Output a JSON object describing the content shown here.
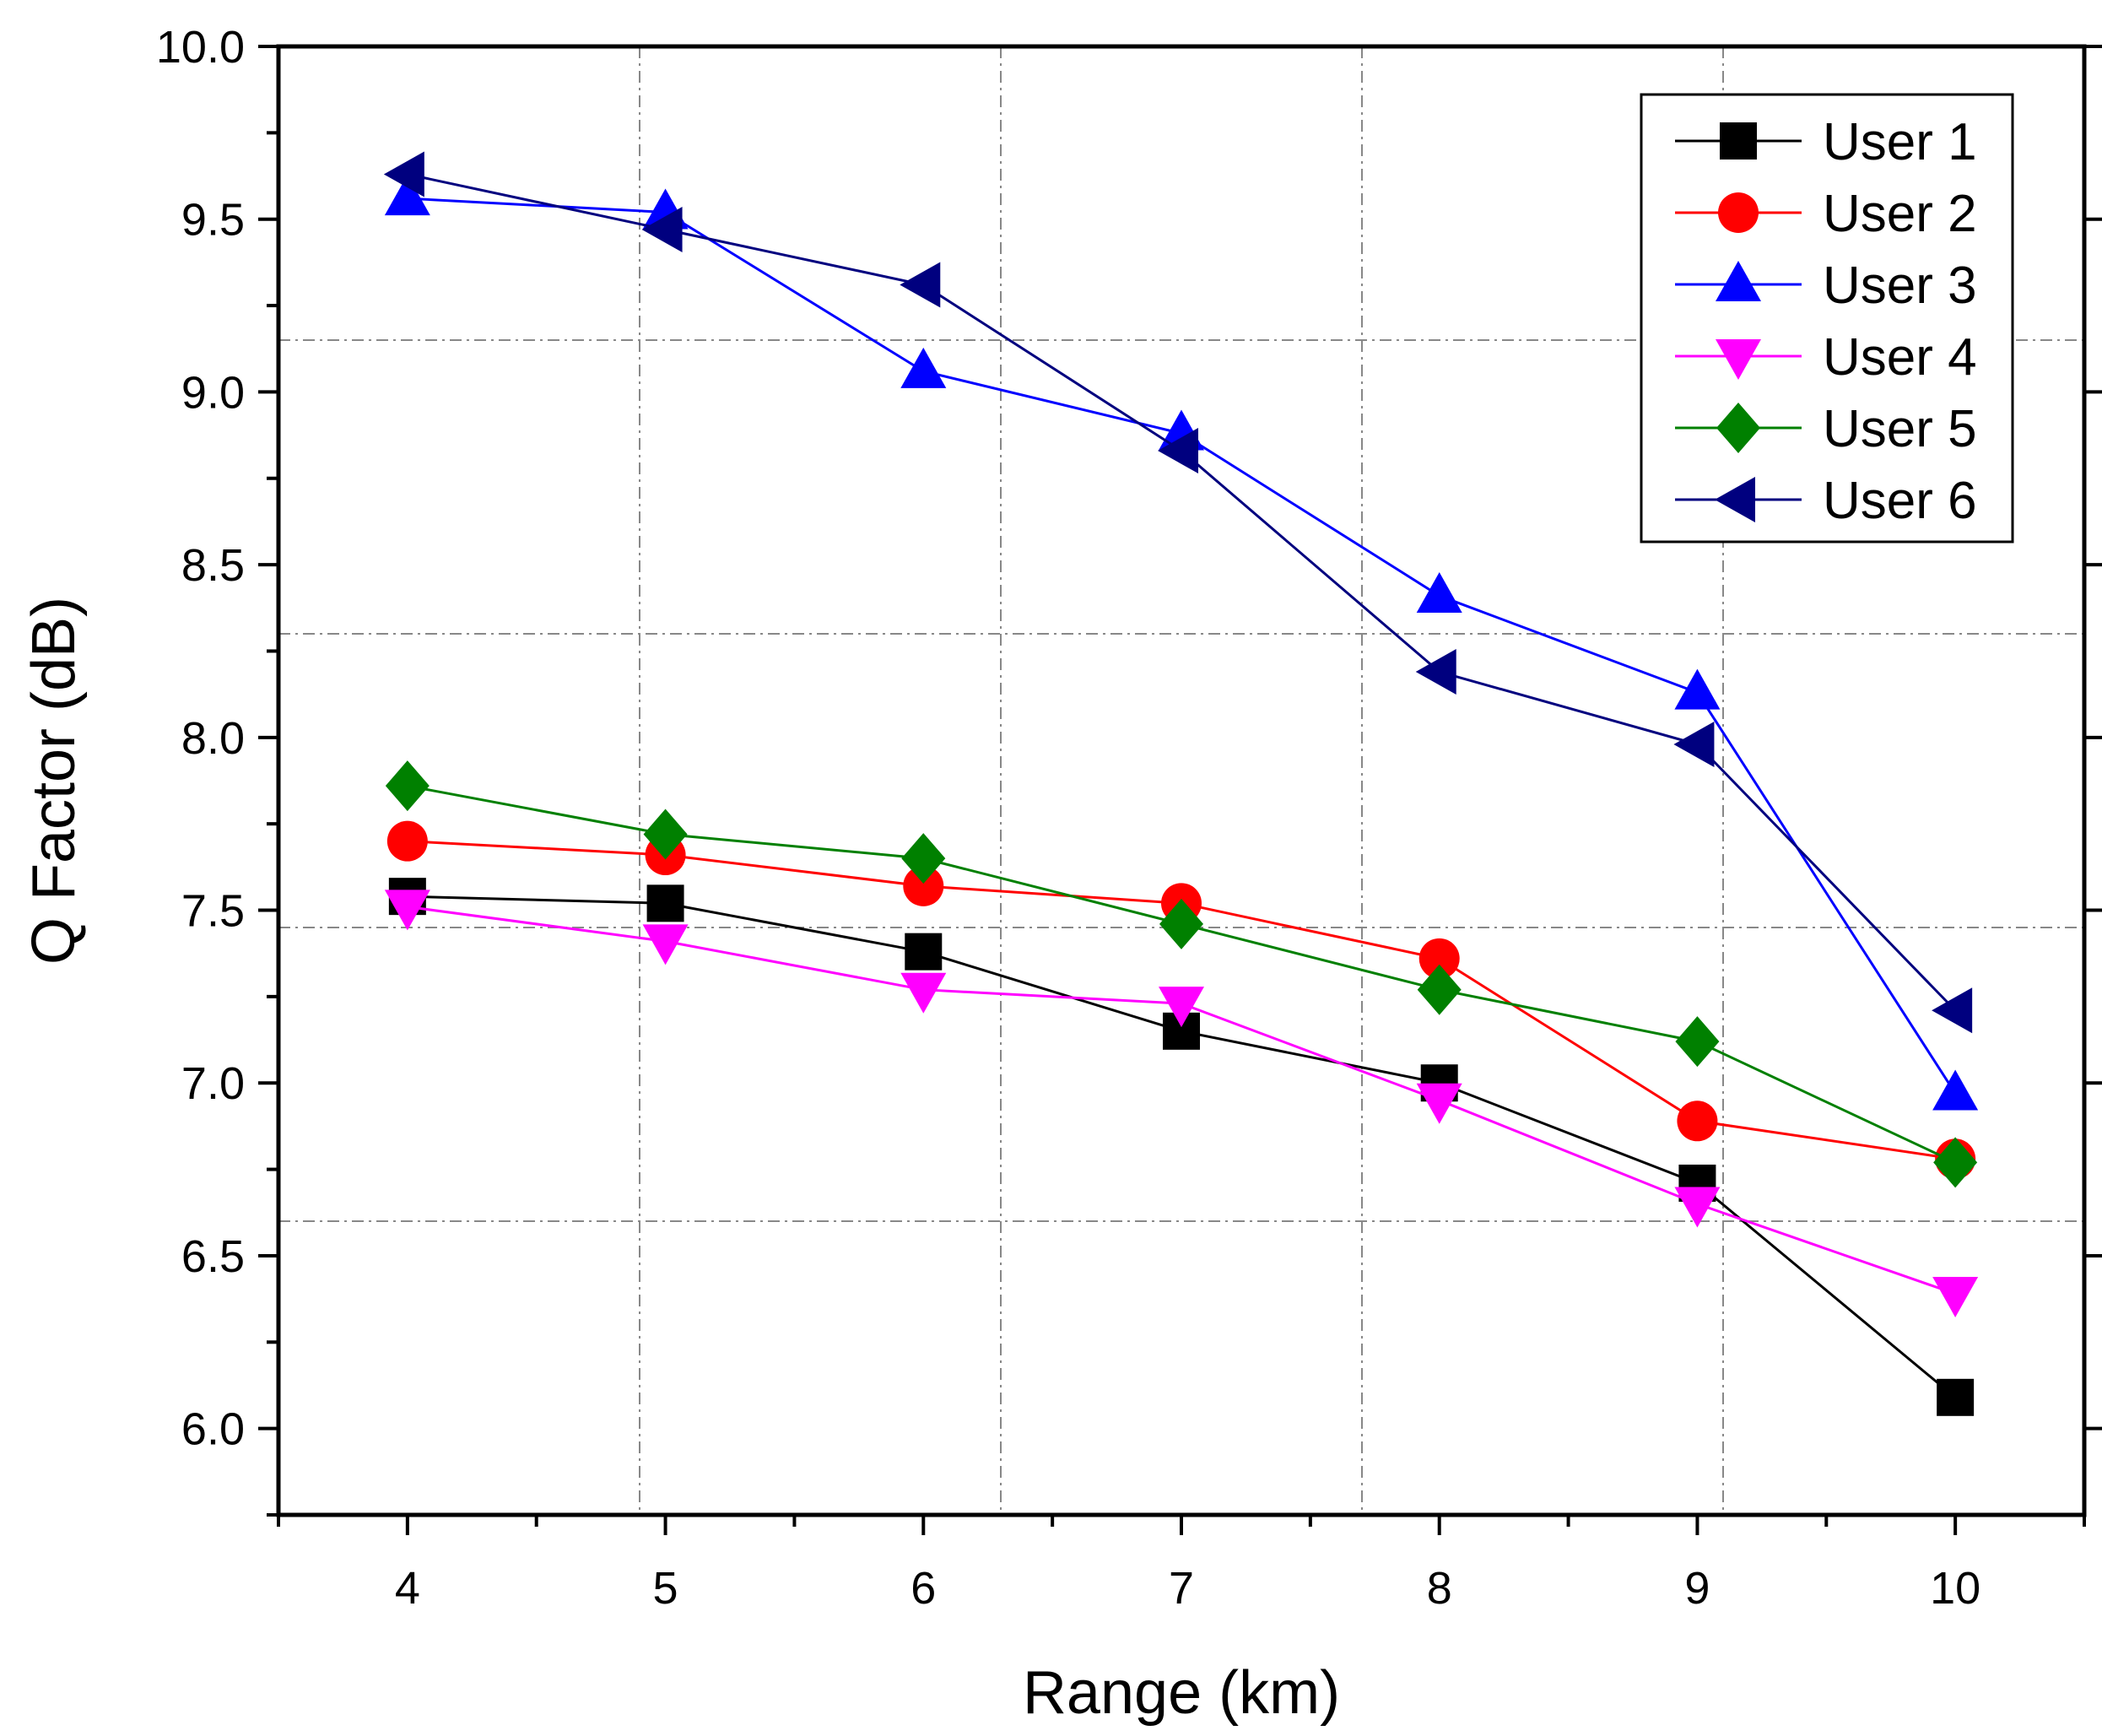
{
  "chart_data": {
    "type": "line",
    "title": "",
    "xlabel": "Range (km)",
    "ylabel": "Q Factor (dB)",
    "xlim": [
      3.5,
      10.5
    ],
    "ylim": [
      5.75,
      10.0
    ],
    "x": [
      4,
      5,
      6,
      7,
      8,
      9,
      10
    ],
    "xticks": [
      "4",
      "5",
      "6",
      "7",
      "8",
      "9",
      "10"
    ],
    "yticks": [
      "6.0",
      "6.5",
      "7.0",
      "7.5",
      "8.0",
      "8.5",
      "9.0",
      "9.5",
      "10.0"
    ],
    "legend_position": "top-right",
    "series": [
      {
        "name": "User 1",
        "color": "#000000",
        "marker": "square",
        "values": [
          7.54,
          7.52,
          7.38,
          7.15,
          7.0,
          6.71,
          6.09
        ]
      },
      {
        "name": "User 2",
        "color": "#ff0000",
        "marker": "circle",
        "values": [
          7.7,
          7.66,
          7.57,
          7.52,
          7.36,
          6.89,
          6.78
        ]
      },
      {
        "name": "User 3",
        "color": "#0000ff",
        "marker": "triangle-up",
        "values": [
          9.56,
          9.52,
          9.06,
          8.88,
          8.41,
          8.13,
          6.97
        ]
      },
      {
        "name": "User 4",
        "color": "#ff00ff",
        "marker": "triangle-down",
        "values": [
          7.51,
          7.41,
          7.27,
          7.23,
          6.95,
          6.65,
          6.39
        ]
      },
      {
        "name": "User 5",
        "color": "#008000",
        "marker": "diamond",
        "values": [
          7.86,
          7.72,
          7.65,
          7.46,
          7.27,
          7.12,
          6.77
        ]
      },
      {
        "name": "User 6",
        "color": "#00007f",
        "marker": "triangle-left",
        "values": [
          9.63,
          9.47,
          9.31,
          8.83,
          8.19,
          7.98,
          7.21
        ]
      }
    ]
  }
}
